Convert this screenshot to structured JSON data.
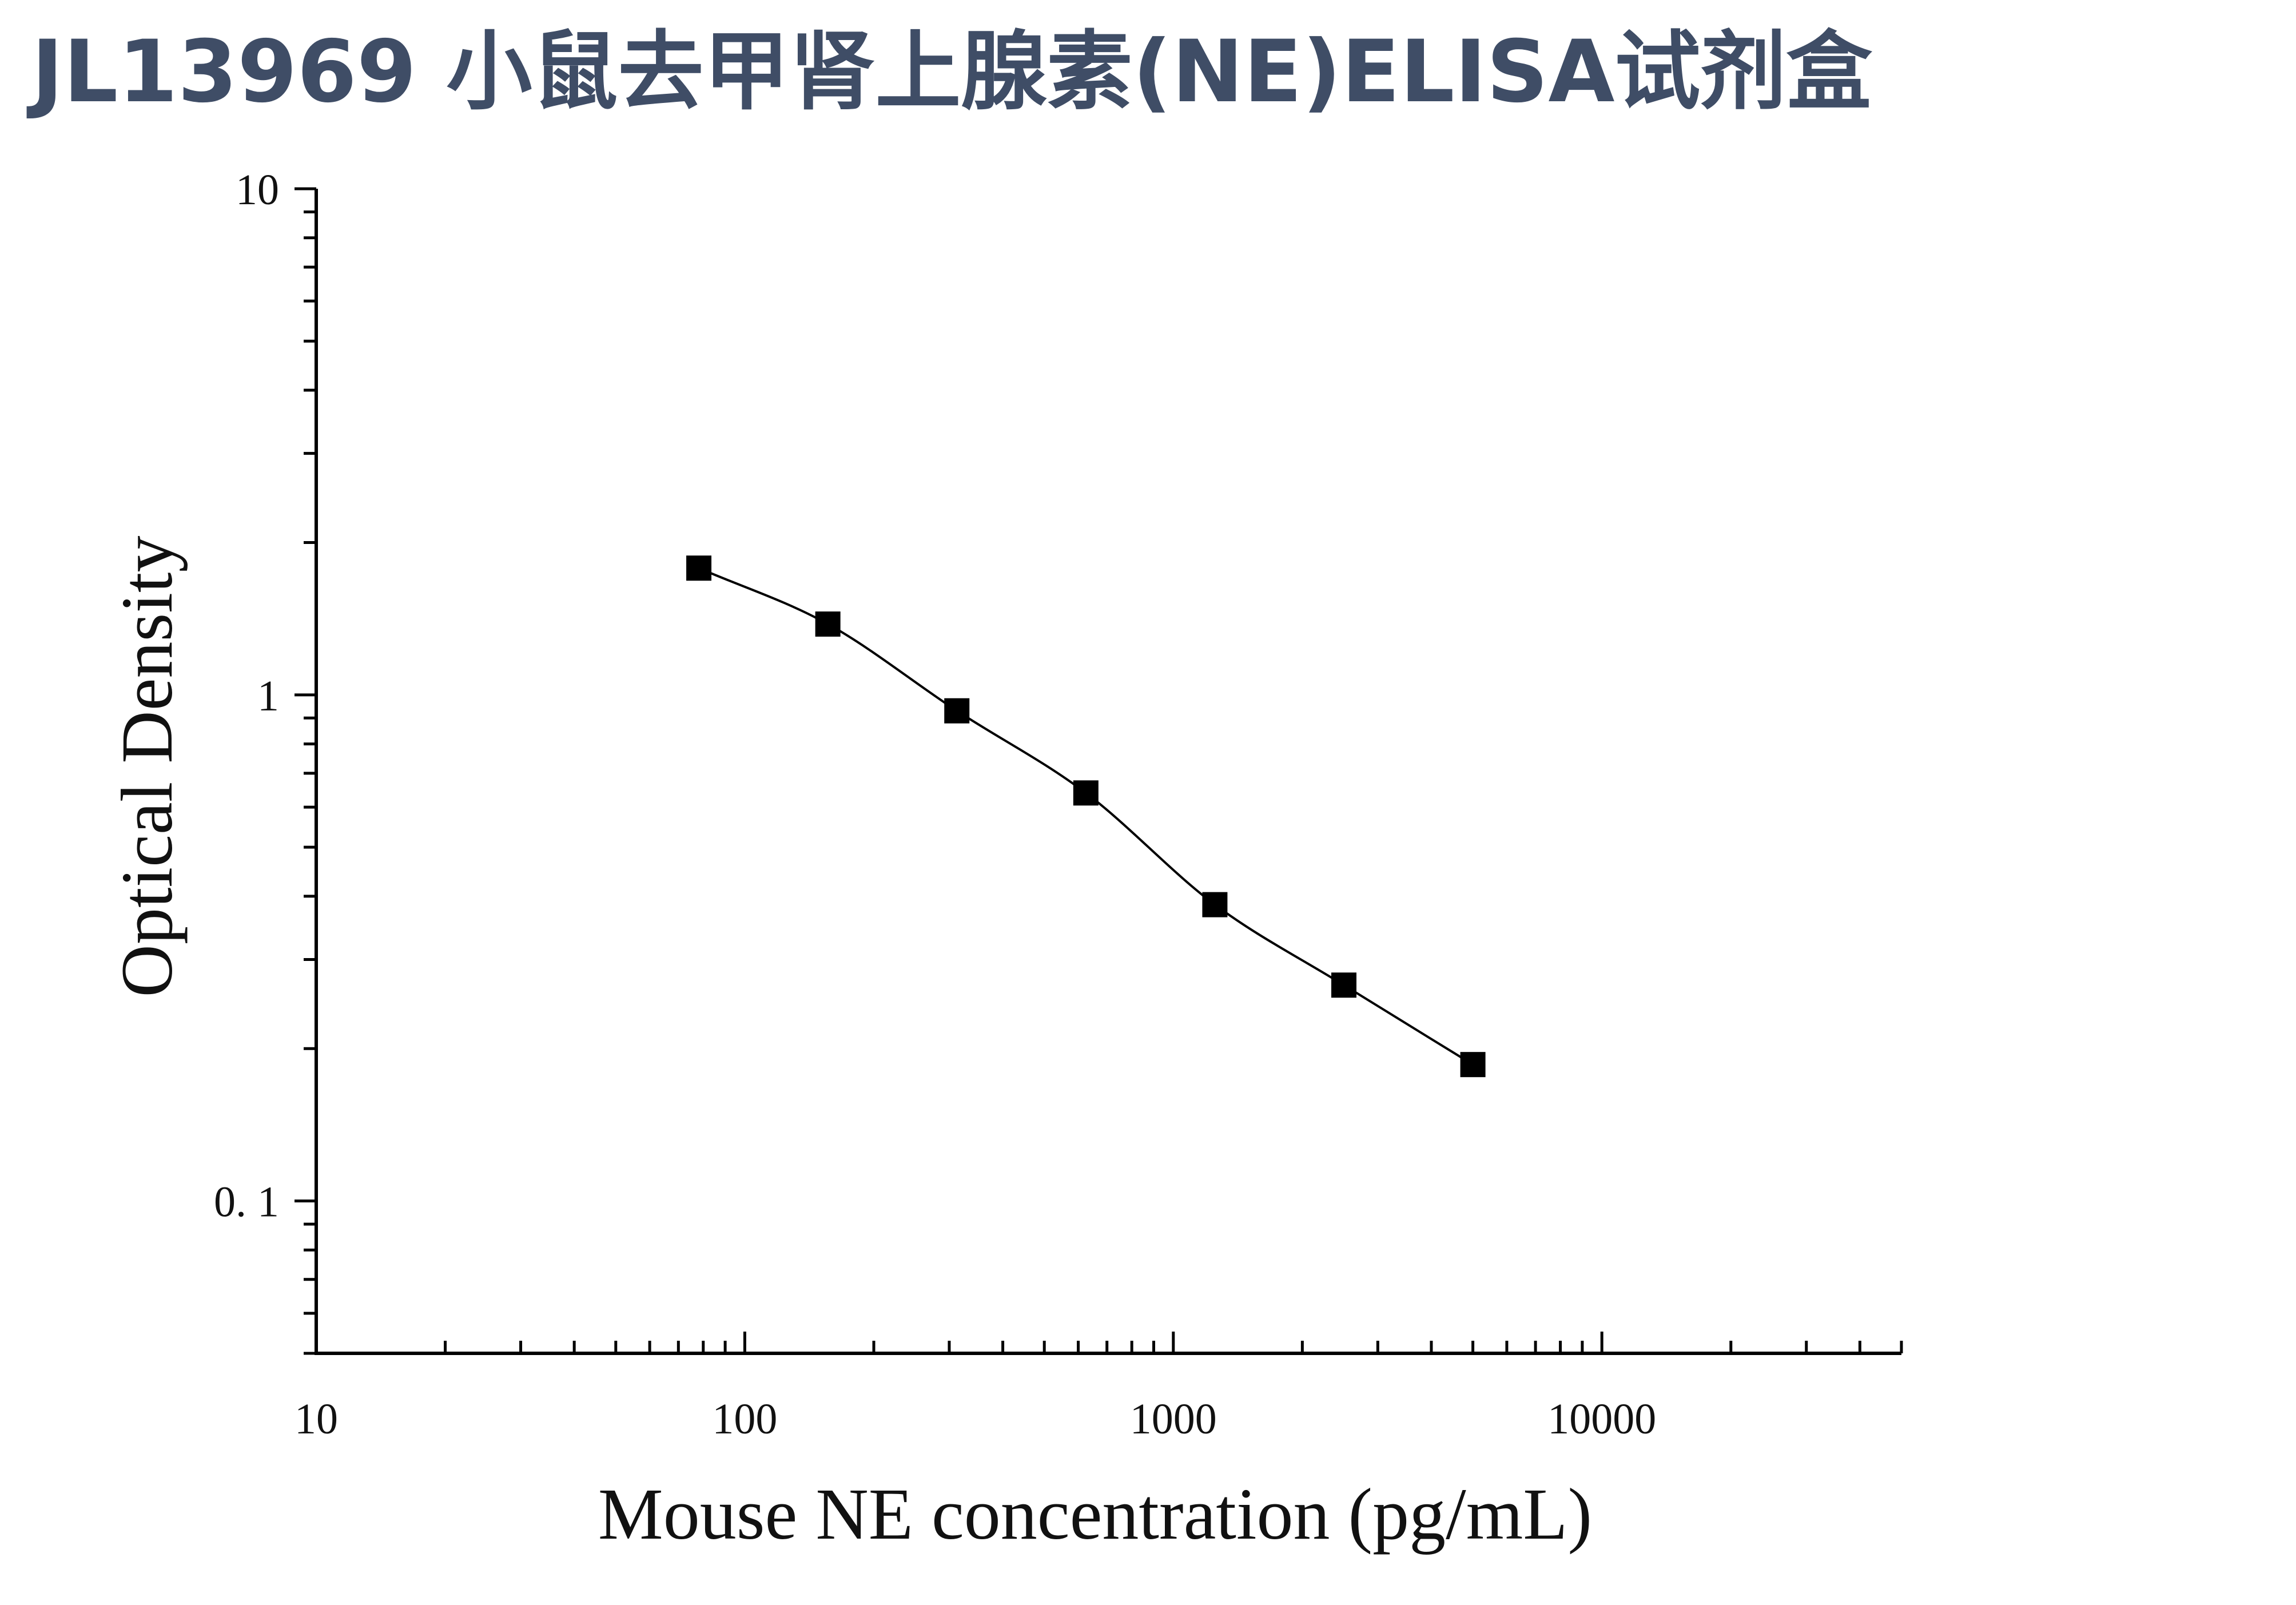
{
  "page": {
    "title": "JL13969 小鼠去甲肾上腺素(NE)ELISA试剂盒",
    "title_color": "#3f4d66"
  },
  "chart_data": {
    "type": "scatter",
    "title": "",
    "xlabel": "Mouse NE concentration (pg/mL)",
    "ylabel": "Optical Density",
    "x_scale": "log",
    "y_scale": "log",
    "xlim": [
      10,
      50000
    ],
    "ylim": [
      0.05,
      10
    ],
    "x_ticks": [
      {
        "value": 10,
        "label": "10"
      },
      {
        "value": 100,
        "label": "100"
      },
      {
        "value": 1000,
        "label": "1000"
      },
      {
        "value": 10000,
        "label": "10000"
      }
    ],
    "y_ticks": [
      {
        "value": 0.1,
        "label": "0. 1"
      },
      {
        "value": 1,
        "label": "1"
      },
      {
        "value": 10,
        "label": "10"
      }
    ],
    "grid": false,
    "legend": "none",
    "series": [
      {
        "marker": "square",
        "fitted_curve": true,
        "color": "#000000",
        "x": [
          78.125,
          156.25,
          312.5,
          625,
          1250,
          2500,
          5000
        ],
        "y": [
          1.78,
          1.38,
          0.93,
          0.64,
          0.385,
          0.267,
          0.186
        ]
      }
    ]
  }
}
